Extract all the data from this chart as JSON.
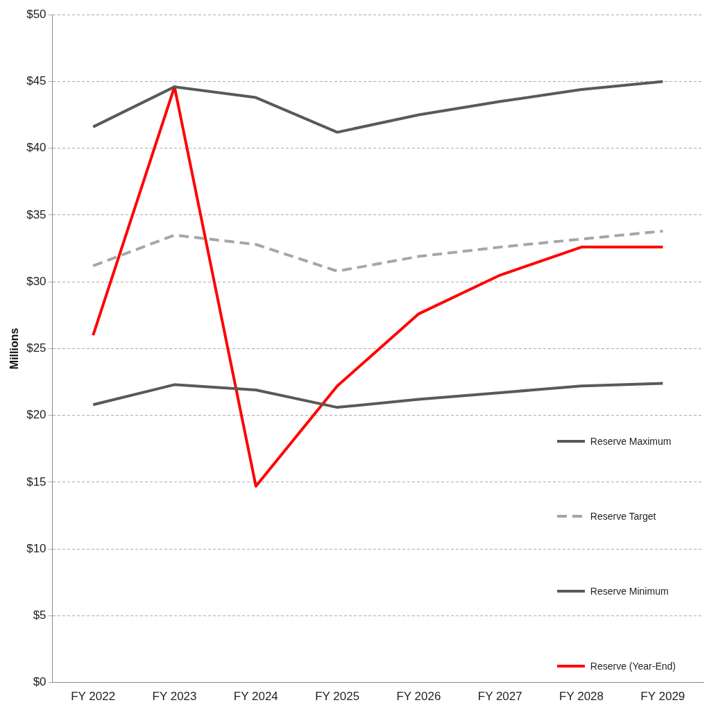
{
  "chart_data": {
    "type": "line",
    "ylabel": "Millions",
    "categories": [
      "FY 2022",
      "FY 2023",
      "FY 2024",
      "FY 2025",
      "FY 2026",
      "FY 2027",
      "FY 2028",
      "FY 2029"
    ],
    "series": [
      {
        "name": "Reserve Maximum",
        "color": "#595959",
        "values": [
          41.6,
          44.6,
          43.8,
          41.2,
          42.5,
          43.5,
          44.4,
          45.0
        ]
      },
      {
        "name": "Reserve Target",
        "color": "#a6a6a6",
        "line_style": "dashed",
        "values": [
          31.2,
          33.5,
          32.8,
          30.8,
          31.9,
          32.6,
          33.2,
          33.8
        ]
      },
      {
        "name": "Reserve Minimum",
        "color": "#595959",
        "values": [
          20.8,
          22.3,
          21.9,
          20.6,
          21.2,
          21.7,
          22.2,
          22.4
        ]
      },
      {
        "name": "Reserve (Year-End)",
        "color": "#ff0000",
        "values": [
          26.0,
          44.6,
          14.7,
          22.2,
          27.6,
          30.5,
          32.6,
          32.6
        ]
      }
    ],
    "ylim": [
      0,
      50
    ],
    "yticks": [
      {
        "value": 0,
        "label": "$0"
      },
      {
        "value": 5,
        "label": "$5"
      },
      {
        "value": 10,
        "label": "$10"
      },
      {
        "value": 15,
        "label": "$15"
      },
      {
        "value": 20,
        "label": "$20"
      },
      {
        "value": 25,
        "label": "$25"
      },
      {
        "value": 30,
        "label": "$30"
      },
      {
        "value": 35,
        "label": "$35"
      },
      {
        "value": 40,
        "label": "$40"
      },
      {
        "value": 45,
        "label": "$45"
      },
      {
        "value": 50,
        "label": "$50"
      }
    ],
    "grid": "y",
    "legend": "right",
    "marker": "none",
    "line_style": "solid"
  }
}
